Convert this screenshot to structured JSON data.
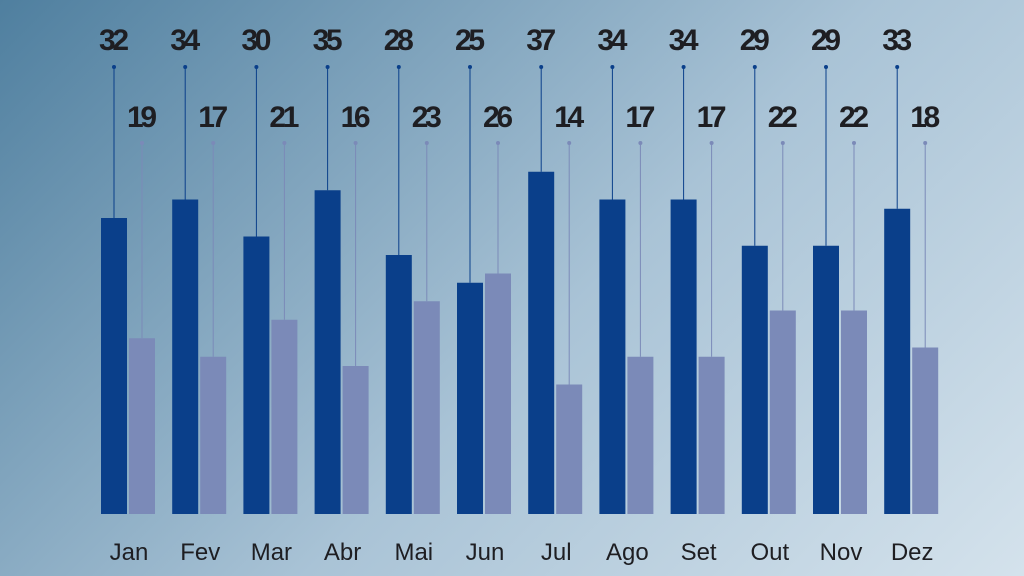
{
  "chart_data": {
    "type": "bar",
    "categories": [
      "Jan",
      "Fev",
      "Mar",
      "Abr",
      "Mai",
      "Jun",
      "Jul",
      "Ago",
      "Set",
      "Out",
      "Nov",
      "Dez"
    ],
    "series": [
      {
        "values": [
          32,
          34,
          30,
          35,
          28,
          25,
          37,
          34,
          34,
          29,
          29,
          33
        ],
        "color": "#0a3f8a"
      },
      {
        "values": [
          19,
          17,
          21,
          16,
          23,
          26,
          14,
          17,
          17,
          22,
          22,
          18
        ],
        "color": "#7b8ab8"
      }
    ],
    "ylim": [
      0,
      55
    ],
    "grid": false,
    "data_labels": "on leader lines above bars"
  }
}
